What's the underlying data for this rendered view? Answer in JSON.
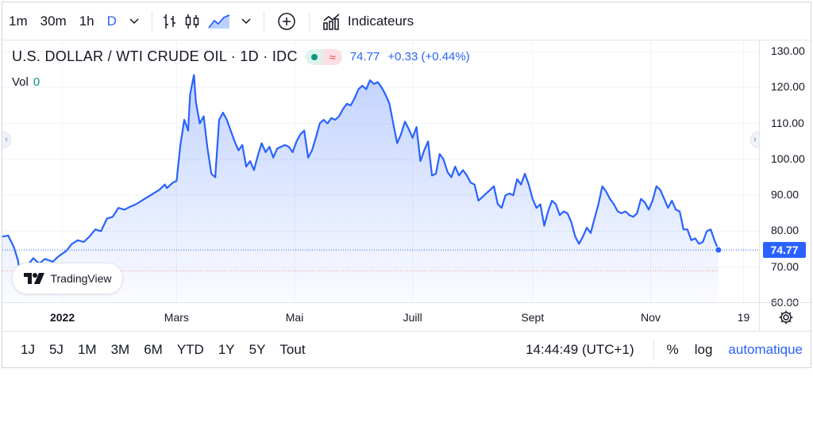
{
  "toolbar": {
    "intervals": [
      "1m",
      "30m",
      "1h",
      "D"
    ],
    "active_interval": "D",
    "indicators_label": "Indicateurs",
    "icons": [
      "chevron-down-icon",
      "bar-chart-icon",
      "candlestick-icon",
      "area-chart-icon",
      "plus-circle-icon",
      "indicators-icon"
    ]
  },
  "legend": {
    "title": "U.S. DOLLAR / WTI CRUDE OIL · 1D · IDC",
    "price": "74.77",
    "change": "+0.33 (+0.44%)",
    "volume_label": "Vol",
    "volume_value": "0"
  },
  "logo_text": "TradingView",
  "last_price_badge": "74.77",
  "colors": {
    "line": "#2962ff",
    "accent": "#2962ff",
    "up": "#089981",
    "down": "#f23645"
  },
  "bottom": {
    "ranges": [
      "1J",
      "5J",
      "1M",
      "3M",
      "6M",
      "YTD",
      "1Y",
      "5Y",
      "Tout"
    ],
    "time": "14:44:49 (UTC+1)",
    "percent": "%",
    "log": "log",
    "auto": "automatique"
  },
  "chart_data": {
    "type": "area",
    "title": "U.S. DOLLAR / WTI CRUDE OIL · 1D · IDC",
    "y_ticks": [
      "130.00",
      "120.00",
      "110.00",
      "100.00",
      "90.00",
      "80.00",
      "70.00",
      "60.00"
    ],
    "ylim": [
      60,
      130
    ],
    "x_ticks": [
      {
        "label": "2022",
        "x": "2022-01-01",
        "bold": true
      },
      {
        "label": "Mars",
        "x": "2022-03-01",
        "bold": false
      },
      {
        "label": "Mai",
        "x": "2022-05-01",
        "bold": false
      },
      {
        "label": "Juill",
        "x": "2022-07-01",
        "bold": false
      },
      {
        "label": "Sept",
        "x": "2022-09-01",
        "bold": false
      },
      {
        "label": "Nov",
        "x": "2022-11-01",
        "bold": false
      },
      {
        "label": "19",
        "x": "2022-12-19",
        "bold": false
      }
    ],
    "xlim": [
      "2021-12-01",
      "2022-12-27"
    ],
    "last_value": 74.77,
    "prev_close_line": 69,
    "series": [
      {
        "points": [
          [
            "2021-12-01",
            78.5
          ],
          [
            "2021-12-04",
            78.8
          ],
          [
            "2021-12-07",
            75.5
          ],
          [
            "2021-12-09",
            72.0
          ],
          [
            "2021-12-10",
            68.5
          ],
          [
            "2021-12-14",
            70.5
          ],
          [
            "2021-12-17",
            72.5
          ],
          [
            "2021-12-20",
            71.0
          ],
          [
            "2021-12-23",
            72.3
          ],
          [
            "2021-12-27",
            71.5
          ],
          [
            "2021-12-30",
            73.0
          ],
          [
            "2022-01-03",
            74.5
          ],
          [
            "2022-01-06",
            76.5
          ],
          [
            "2022-01-09",
            77.5
          ],
          [
            "2022-01-12",
            77.0
          ],
          [
            "2022-01-15",
            78.5
          ],
          [
            "2022-01-18",
            80.5
          ],
          [
            "2022-01-21",
            80.0
          ],
          [
            "2022-01-24",
            83.5
          ],
          [
            "2022-01-27",
            84.0
          ],
          [
            "2022-01-30",
            86.5
          ],
          [
            "2022-02-02",
            86.0
          ],
          [
            "2022-02-05",
            86.8
          ],
          [
            "2022-02-08",
            87.5
          ],
          [
            "2022-02-11",
            88.5
          ],
          [
            "2022-02-14",
            89.5
          ],
          [
            "2022-02-17",
            90.5
          ],
          [
            "2022-02-20",
            91.5
          ],
          [
            "2022-02-23",
            93.0
          ],
          [
            "2022-02-24",
            92.0
          ],
          [
            "2022-02-27",
            93.5
          ],
          [
            "2022-03-01",
            94.0
          ],
          [
            "2022-03-03",
            104.0
          ],
          [
            "2022-03-05",
            111.0
          ],
          [
            "2022-03-07",
            108.0
          ],
          [
            "2022-03-08",
            118.0
          ],
          [
            "2022-03-10",
            123.5
          ],
          [
            "2022-03-11",
            116.0
          ],
          [
            "2022-03-13",
            110.0
          ],
          [
            "2022-03-15",
            112.0
          ],
          [
            "2022-03-17",
            103.0
          ],
          [
            "2022-03-19",
            96.0
          ],
          [
            "2022-03-21",
            95.0
          ],
          [
            "2022-03-23",
            111.0
          ],
          [
            "2022-03-25",
            113.0
          ],
          [
            "2022-03-27",
            111.0
          ],
          [
            "2022-03-29",
            108.0
          ],
          [
            "2022-03-31",
            105.0
          ],
          [
            "2022-04-02",
            102.5
          ],
          [
            "2022-04-04",
            104.0
          ],
          [
            "2022-04-06",
            98.0
          ],
          [
            "2022-04-08",
            99.5
          ],
          [
            "2022-04-10",
            97.0
          ],
          [
            "2022-04-12",
            101.0
          ],
          [
            "2022-04-14",
            104.5
          ],
          [
            "2022-04-16",
            102.0
          ],
          [
            "2022-04-18",
            103.5
          ],
          [
            "2022-04-20",
            100.5
          ],
          [
            "2022-04-22",
            103.0
          ],
          [
            "2022-04-24",
            103.5
          ],
          [
            "2022-04-26",
            104.0
          ],
          [
            "2022-04-28",
            103.5
          ],
          [
            "2022-04-30",
            102.0
          ],
          [
            "2022-05-02",
            105.0
          ],
          [
            "2022-05-04",
            107.0
          ],
          [
            "2022-05-06",
            108.0
          ],
          [
            "2022-05-08",
            100.5
          ],
          [
            "2022-05-10",
            102.5
          ],
          [
            "2022-05-12",
            106.0
          ],
          [
            "2022-05-14",
            110.0
          ],
          [
            "2022-05-16",
            111.0
          ],
          [
            "2022-05-18",
            110.0
          ],
          [
            "2022-05-20",
            111.5
          ],
          [
            "2022-05-22",
            111.0
          ],
          [
            "2022-05-24",
            112.0
          ],
          [
            "2022-05-26",
            114.0
          ],
          [
            "2022-05-28",
            115.5
          ],
          [
            "2022-05-30",
            115.0
          ],
          [
            "2022-06-01",
            117.0
          ],
          [
            "2022-06-03",
            119.5
          ],
          [
            "2022-06-05",
            120.5
          ],
          [
            "2022-06-07",
            119.5
          ],
          [
            "2022-06-09",
            122.0
          ],
          [
            "2022-06-11",
            121.0
          ],
          [
            "2022-06-13",
            121.5
          ],
          [
            "2022-06-15",
            120.0
          ],
          [
            "2022-06-17",
            118.0
          ],
          [
            "2022-06-19",
            115.5
          ],
          [
            "2022-06-21",
            110.0
          ],
          [
            "2022-06-23",
            104.5
          ],
          [
            "2022-06-25",
            107.0
          ],
          [
            "2022-06-27",
            110.5
          ],
          [
            "2022-06-29",
            108.5
          ],
          [
            "2022-07-01",
            106.0
          ],
          [
            "2022-07-03",
            109.0
          ],
          [
            "2022-07-05",
            99.5
          ],
          [
            "2022-07-07",
            102.5
          ],
          [
            "2022-07-09",
            105.0
          ],
          [
            "2022-07-11",
            95.5
          ],
          [
            "2022-07-13",
            96.0
          ],
          [
            "2022-07-15",
            101.5
          ],
          [
            "2022-07-17",
            100.0
          ],
          [
            "2022-07-19",
            96.5
          ],
          [
            "2022-07-21",
            95.0
          ],
          [
            "2022-07-23",
            98.0
          ],
          [
            "2022-07-25",
            95.5
          ],
          [
            "2022-07-27",
            97.0
          ],
          [
            "2022-07-29",
            95.5
          ],
          [
            "2022-07-31",
            93.5
          ],
          [
            "2022-08-02",
            93.0
          ],
          [
            "2022-08-04",
            88.5
          ],
          [
            "2022-08-06",
            89.5
          ],
          [
            "2022-08-08",
            90.5
          ],
          [
            "2022-08-10",
            91.5
          ],
          [
            "2022-08-12",
            92.5
          ],
          [
            "2022-08-14",
            87.5
          ],
          [
            "2022-08-16",
            86.5
          ],
          [
            "2022-08-18",
            90.0
          ],
          [
            "2022-08-20",
            90.5
          ],
          [
            "2022-08-22",
            90.0
          ],
          [
            "2022-08-24",
            94.5
          ],
          [
            "2022-08-26",
            93.0
          ],
          [
            "2022-08-28",
            96.0
          ],
          [
            "2022-08-30",
            93.0
          ],
          [
            "2022-09-01",
            89.0
          ],
          [
            "2022-09-03",
            86.5
          ],
          [
            "2022-09-05",
            87.5
          ],
          [
            "2022-09-07",
            81.5
          ],
          [
            "2022-09-09",
            85.5
          ],
          [
            "2022-09-11",
            88.5
          ],
          [
            "2022-09-13",
            87.5
          ],
          [
            "2022-09-15",
            84.5
          ],
          [
            "2022-09-17",
            85.5
          ],
          [
            "2022-09-19",
            85.0
          ],
          [
            "2022-09-21",
            82.5
          ],
          [
            "2022-09-23",
            78.5
          ],
          [
            "2022-09-25",
            76.5
          ],
          [
            "2022-09-27",
            78.5
          ],
          [
            "2022-09-29",
            81.0
          ],
          [
            "2022-10-01",
            79.5
          ],
          [
            "2022-10-03",
            83.5
          ],
          [
            "2022-10-05",
            87.5
          ],
          [
            "2022-10-07",
            92.5
          ],
          [
            "2022-10-09",
            91.0
          ],
          [
            "2022-10-11",
            89.0
          ],
          [
            "2022-10-13",
            87.5
          ],
          [
            "2022-10-15",
            85.5
          ],
          [
            "2022-10-17",
            85.0
          ],
          [
            "2022-10-19",
            85.5
          ],
          [
            "2022-10-21",
            84.5
          ],
          [
            "2022-10-23",
            84.0
          ],
          [
            "2022-10-25",
            85.0
          ],
          [
            "2022-10-27",
            89.0
          ],
          [
            "2022-10-29",
            88.0
          ],
          [
            "2022-10-31",
            86.0
          ],
          [
            "2022-11-02",
            88.5
          ],
          [
            "2022-11-04",
            92.5
          ],
          [
            "2022-11-06",
            91.5
          ],
          [
            "2022-11-08",
            89.0
          ],
          [
            "2022-11-10",
            86.5
          ],
          [
            "2022-11-12",
            88.5
          ],
          [
            "2022-11-14",
            86.0
          ],
          [
            "2022-11-16",
            85.5
          ],
          [
            "2022-11-18",
            80.5
          ],
          [
            "2022-11-20",
            80.5
          ],
          [
            "2022-11-22",
            77.5
          ],
          [
            "2022-11-24",
            78.0
          ],
          [
            "2022-11-26",
            76.5
          ],
          [
            "2022-11-28",
            77.0
          ],
          [
            "2022-11-30",
            80.0
          ],
          [
            "2022-12-02",
            80.5
          ],
          [
            "2022-12-04",
            77.5
          ],
          [
            "2022-12-06",
            74.8
          ]
        ]
      }
    ]
  }
}
